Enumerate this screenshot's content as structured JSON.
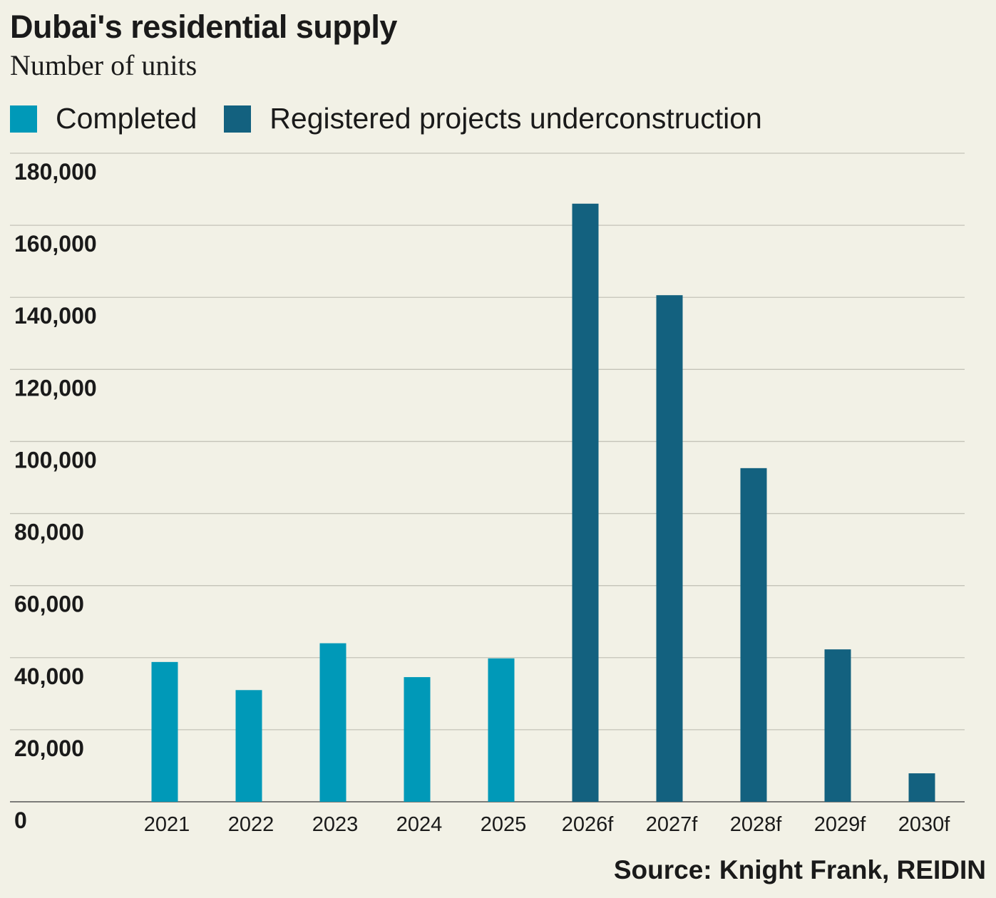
{
  "chart_data": {
    "type": "bar",
    "title": "Dubai's residential supply",
    "subtitle": "Number of units",
    "categories": [
      "2021",
      "2022",
      "2023",
      "2024",
      "2025",
      "2026f",
      "2027f",
      "2028f",
      "2029f",
      "2030f"
    ],
    "series": [
      {
        "name": "Completed",
        "color": "#0099b8",
        "values": [
          38800,
          31000,
          44000,
          34600,
          39800,
          null,
          null,
          null,
          null,
          null
        ]
      },
      {
        "name": "Registered projects underconstruction",
        "color": "#13617f",
        "values": [
          null,
          null,
          null,
          null,
          null,
          166000,
          140600,
          92600,
          42300,
          7900
        ]
      }
    ],
    "ylim": [
      0,
      180000
    ],
    "yticks": [
      "0",
      "20,000",
      "40,000",
      "60,000",
      "80,000",
      "100,000",
      "120,000",
      "140,000",
      "160,000",
      "180,000"
    ],
    "grid": true,
    "legend": "top-left",
    "source": "Source: Knight Frank, REIDIN"
  }
}
